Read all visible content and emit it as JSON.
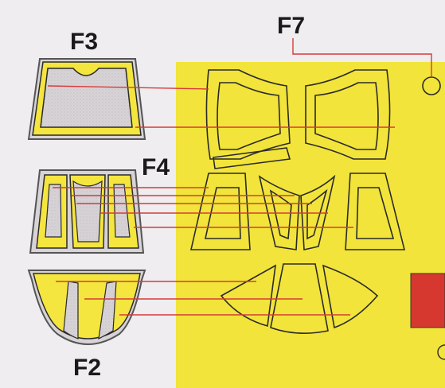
{
  "labels": {
    "f3": "F3",
    "f4": "F4",
    "f2": "F2",
    "f7": "F7"
  },
  "colors": {
    "background": "#efedef",
    "sheet": "#f2e43a",
    "mask_fill": "#f4e53f",
    "window_fill": "#d7d3d6",
    "outline": "#2a2a2a",
    "leader_line": "#d83a3a",
    "red_swatch": "#d6382f"
  },
  "parts": [
    {
      "name": "F3",
      "shape": "trapezoid-front-panel"
    },
    {
      "name": "F4",
      "shape": "three-window-panel"
    },
    {
      "name": "F2",
      "shape": "rounded-bottom-panel"
    },
    {
      "name": "F7",
      "shape": "circle"
    }
  ]
}
